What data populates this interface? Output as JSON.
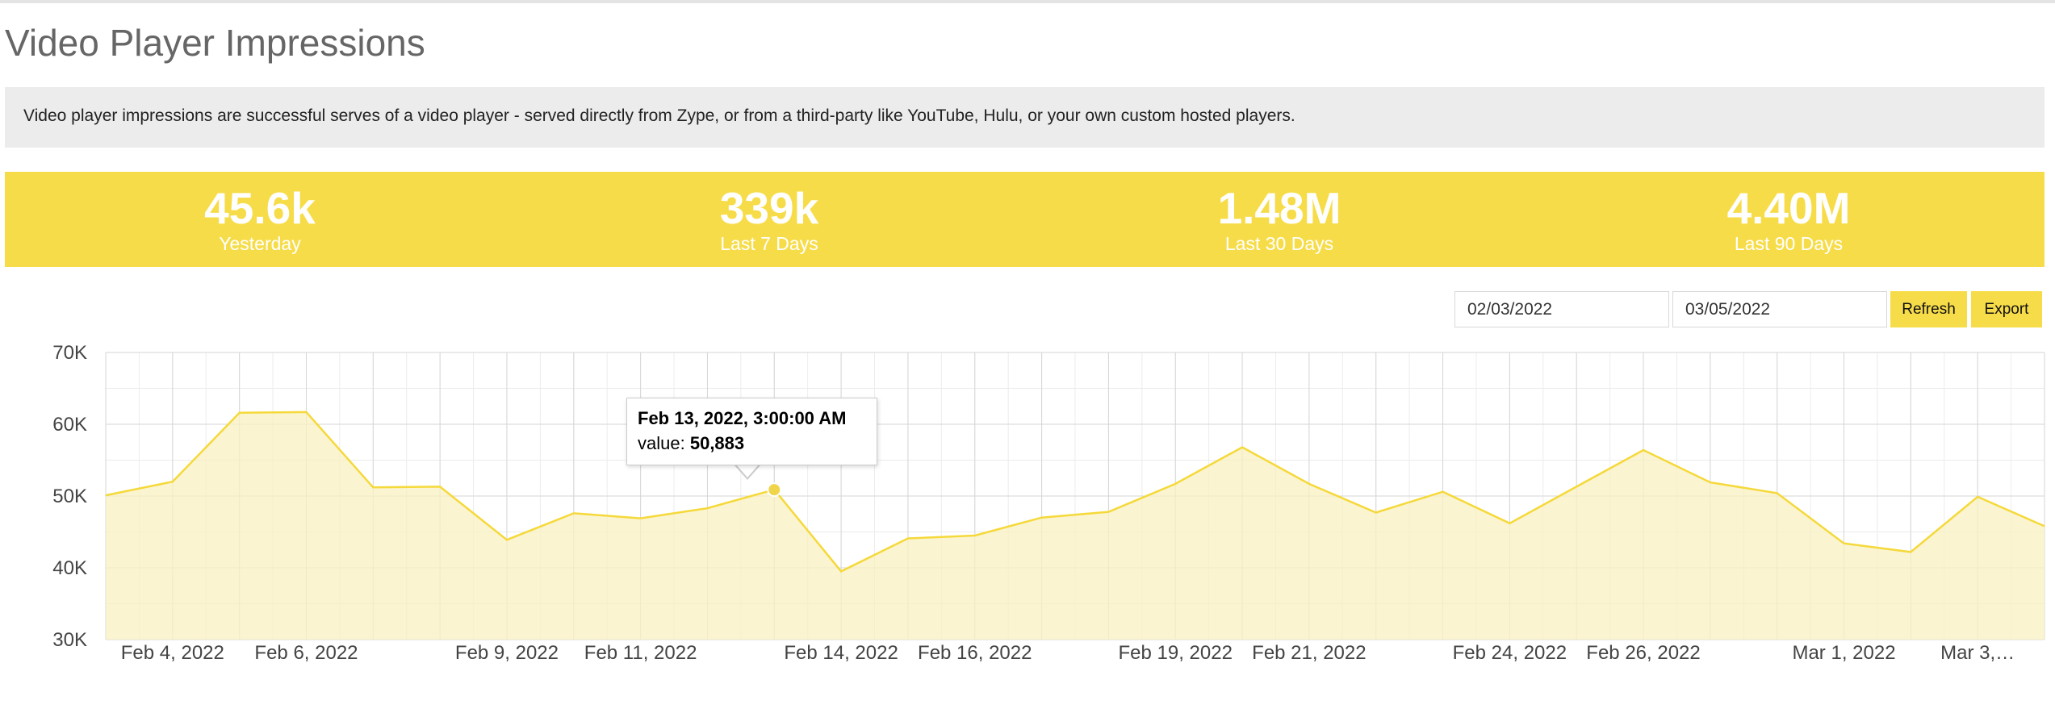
{
  "page": {
    "title": "Video Player Impressions",
    "description": "Video player impressions are successful serves of a video player - served directly from Zype, or from a third-party like YouTube, Hulu, or your own custom hosted players."
  },
  "stats": [
    {
      "value": "45.6k",
      "label": "Yesterday"
    },
    {
      "value": "339k",
      "label": "Last 7 Days"
    },
    {
      "value": "1.48M",
      "label": "Last 30 Days"
    },
    {
      "value": "4.40M",
      "label": "Last 90 Days"
    }
  ],
  "controls": {
    "start_date": "02/03/2022",
    "end_date": "03/05/2022",
    "refresh_label": "Refresh",
    "export_label": "Export"
  },
  "tooltip": {
    "title": "Feb 13, 2022, 3:00:00 AM",
    "value_label": "value:",
    "value": "50,883"
  },
  "colors": {
    "accent": "#f7dc49",
    "line": "#f5d93a",
    "fill": "#faf0c2",
    "info_bg": "#ececec"
  },
  "chart_data": {
    "type": "area",
    "x": [
      "2022-02-03",
      "2022-02-04",
      "2022-02-05",
      "2022-02-06",
      "2022-02-07",
      "2022-02-08",
      "2022-02-09",
      "2022-02-10",
      "2022-02-11",
      "2022-02-12",
      "2022-02-13",
      "2022-02-14",
      "2022-02-15",
      "2022-02-16",
      "2022-02-17",
      "2022-02-18",
      "2022-02-19",
      "2022-02-20",
      "2022-02-21",
      "2022-02-22",
      "2022-02-23",
      "2022-02-24",
      "2022-02-25",
      "2022-02-26",
      "2022-02-27",
      "2022-02-28",
      "2022-03-01",
      "2022-03-02",
      "2022-03-03",
      "2022-03-04"
    ],
    "values": [
      50100,
      52000,
      61600,
      61700,
      51200,
      51300,
      43900,
      47600,
      46900,
      48300,
      50883,
      39500,
      44100,
      44500,
      47000,
      47800,
      51700,
      56800,
      51700,
      47700,
      50600,
      46200,
      51300,
      56400,
      51900,
      50400,
      43400,
      42200,
      49900,
      45800
    ],
    "ylim": [
      30000,
      70000
    ],
    "yticks": [
      "30K",
      "40K",
      "50K",
      "60K",
      "70K"
    ],
    "xtick_labels": [
      "Feb 4, 2022",
      "Feb 6, 2022",
      "Feb 9, 2022",
      "Feb 11, 2022",
      "Feb 14, 2022",
      "Feb 16, 2022",
      "Feb 19, 2022",
      "Feb 21, 2022",
      "Feb 24, 2022",
      "Feb 26, 2022",
      "Mar 1, 2022",
      "Mar 3,…"
    ],
    "highlight_index": 10,
    "grid": true,
    "legend": "none"
  }
}
